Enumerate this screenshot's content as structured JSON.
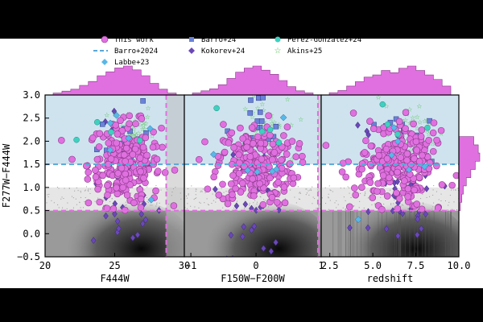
{
  "chart_data": {
    "type": "scatter",
    "legend": {
      "placement": "top",
      "entries": [
        {
          "label": "This work",
          "marker": "circle",
          "color": "#e070e0"
        },
        {
          "label": "Barro+24",
          "marker": "square",
          "color": "#6a82d8"
        },
        {
          "label": "Perez-Gonzalez+24",
          "marker": "hexagon",
          "color": "#40d0c0"
        },
        {
          "label": "Barro+2024",
          "marker": "dashed-line",
          "color": "#5aa8d8"
        },
        {
          "label": "Kokorev+24",
          "marker": "diamond",
          "color": "#6a48b8"
        },
        {
          "label": "Akins+25",
          "marker": "star",
          "color": "#50c050"
        },
        {
          "label": "Labbe+23",
          "marker": "diamond",
          "color": "#58b8e8"
        }
      ]
    },
    "ylabel": "F277W−F444W",
    "ylim": [
      -0.5,
      3.0
    ],
    "yticks": [
      "−0.5",
      "0.0",
      "0.5",
      "1.0",
      "1.5",
      "2.0",
      "2.5",
      "3.0"
    ],
    "selection_color_cut": 1.5,
    "lower_color_limit": 0.5,
    "panels": [
      {
        "xlabel": "F444W",
        "xlim": [
          20,
          30
        ],
        "xticks": [
          "20",
          "25",
          "30"
        ],
        "xtick_values": [
          20,
          25,
          30
        ],
        "vertical_cut": 28.7,
        "this_work_center": [
          25.7,
          1.5
        ],
        "this_work_spread": [
          1.3,
          0.45
        ]
      },
      {
        "xlabel": "F150W−F200W",
        "xlim": [
          -1.1,
          1.0
        ],
        "xticks": [
          "−1",
          "0",
          "1"
        ],
        "xtick_values": [
          -1,
          0,
          1
        ],
        "vertical_cut": 0.95,
        "this_work_center": [
          0.0,
          1.5
        ],
        "this_work_spread": [
          0.3,
          0.45
        ]
      },
      {
        "xlabel": "redshift",
        "xlim": [
          2.0,
          10.0
        ],
        "xticks": [
          "2.5",
          "5.0",
          "7.5",
          "10.0"
        ],
        "xtick_values": [
          2.5,
          5.0,
          7.5,
          10.0
        ],
        "vertical_cut": null,
        "this_work_center": [
          6.6,
          1.5
        ],
        "this_work_spread": [
          1.3,
          0.45
        ]
      }
    ],
    "top_histograms": [
      [
        1,
        2,
        3,
        5,
        7,
        10,
        12,
        14,
        15,
        13,
        10,
        6,
        3,
        1
      ],
      [
        1,
        2,
        3,
        5,
        8,
        11,
        13,
        14,
        12,
        10,
        7,
        4,
        2,
        1
      ],
      [
        1,
        2,
        4,
        6,
        8,
        9,
        11,
        10,
        12,
        13,
        11,
        9,
        7,
        4
      ]
    ],
    "right_histogram": [
      10,
      13,
      14,
      11,
      8,
      5,
      3,
      2,
      1
    ]
  },
  "colors": {
    "this_work": "#e070e0",
    "this_work_edge": "#8a3a8a",
    "shade_top": "#cfe3ef",
    "cut_line": "#5aa8d8",
    "limit_line": "#e070e0",
    "hist": "#e070e0"
  }
}
